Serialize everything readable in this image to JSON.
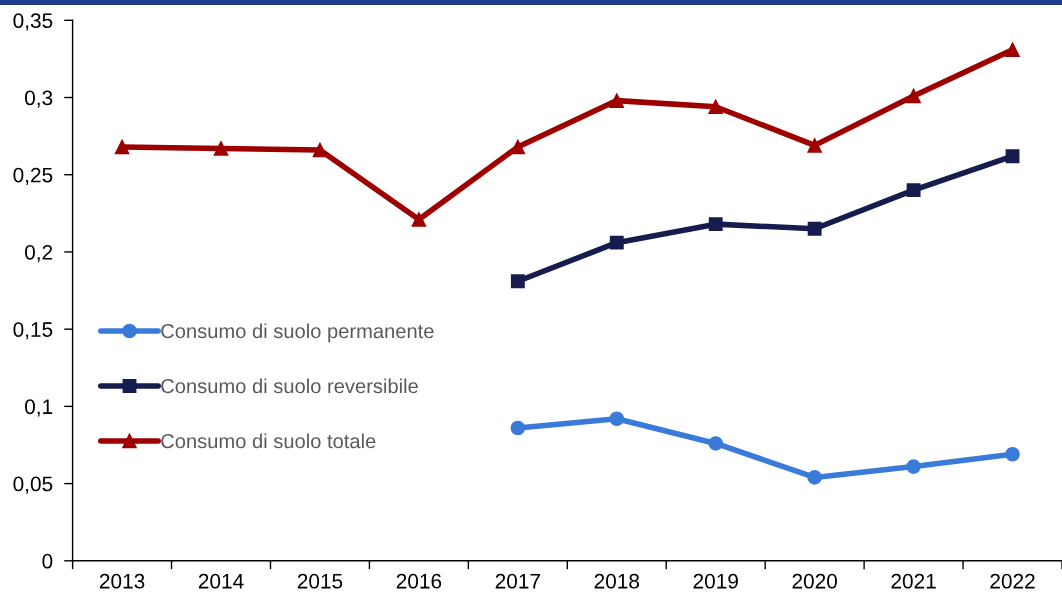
{
  "chart_data": {
    "type": "line",
    "categories": [
      "2013",
      "2014",
      "2015",
      "2016",
      "2017",
      "2018",
      "2019",
      "2020",
      "2021",
      "2022"
    ],
    "series": [
      {
        "name": "Consumo di suolo permanente",
        "color": "#3a7bd9",
        "marker": "circle",
        "values": [
          null,
          null,
          null,
          null,
          0.086,
          0.092,
          0.076,
          0.054,
          0.061,
          0.069
        ]
      },
      {
        "name": "Consumo di suolo reversibile",
        "color": "#161c4e",
        "marker": "square",
        "values": [
          null,
          null,
          null,
          null,
          0.181,
          0.206,
          0.218,
          0.215,
          0.24,
          0.262
        ]
      },
      {
        "name": "Consumo di suolo totale",
        "color": "#9e0000",
        "marker": "triangle",
        "values": [
          0.268,
          0.267,
          0.266,
          0.221,
          0.268,
          0.298,
          0.294,
          0.269,
          0.301,
          0.331
        ]
      }
    ],
    "ylim": [
      0,
      0.35
    ],
    "yticks": [
      0,
      {
        "value": 0.05,
        "label": "0,05"
      },
      {
        "value": 0.1,
        "label": "0,1"
      },
      {
        "value": 0.15,
        "label": "0,15"
      },
      {
        "value": 0.2,
        "label": "0,2"
      },
      {
        "value": 0.25,
        "label": "0,25"
      },
      {
        "value": 0.3,
        "label": "0,3"
      },
      {
        "value": 0.35,
        "label": "0,35"
      }
    ],
    "grid": false,
    "legend": "center left",
    "line_style": "solid"
  }
}
